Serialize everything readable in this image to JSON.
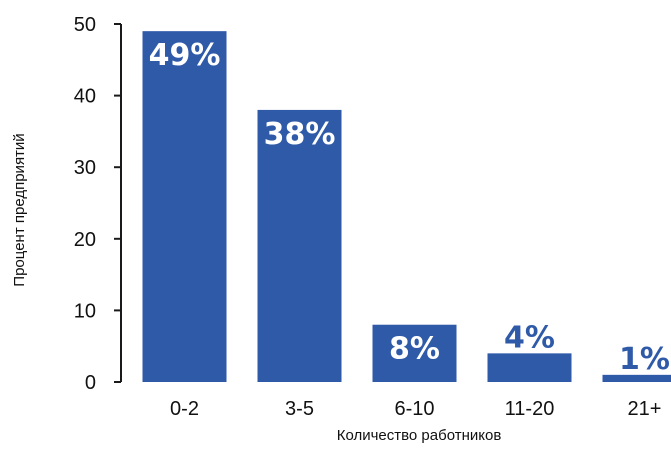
{
  "chart_data": {
    "type": "bar",
    "title": "",
    "xlabel": "Количество работников",
    "ylabel": "Процент предприятий",
    "categories": [
      "0-2",
      "3-5",
      "6-10",
      "11-20",
      "21+"
    ],
    "values": [
      49,
      38,
      8,
      4,
      1
    ],
    "data_labels": [
      "49%",
      "38%",
      "8%",
      "4%",
      "1%"
    ],
    "ylim": [
      0,
      50
    ],
    "yticks": [
      0,
      10,
      20,
      30,
      40,
      50
    ],
    "grid": false,
    "legend": "none",
    "bar_color": "#2F5AA8",
    "label_color_inside": "#ffffff",
    "label_color_outside": "#2F5AA8"
  }
}
